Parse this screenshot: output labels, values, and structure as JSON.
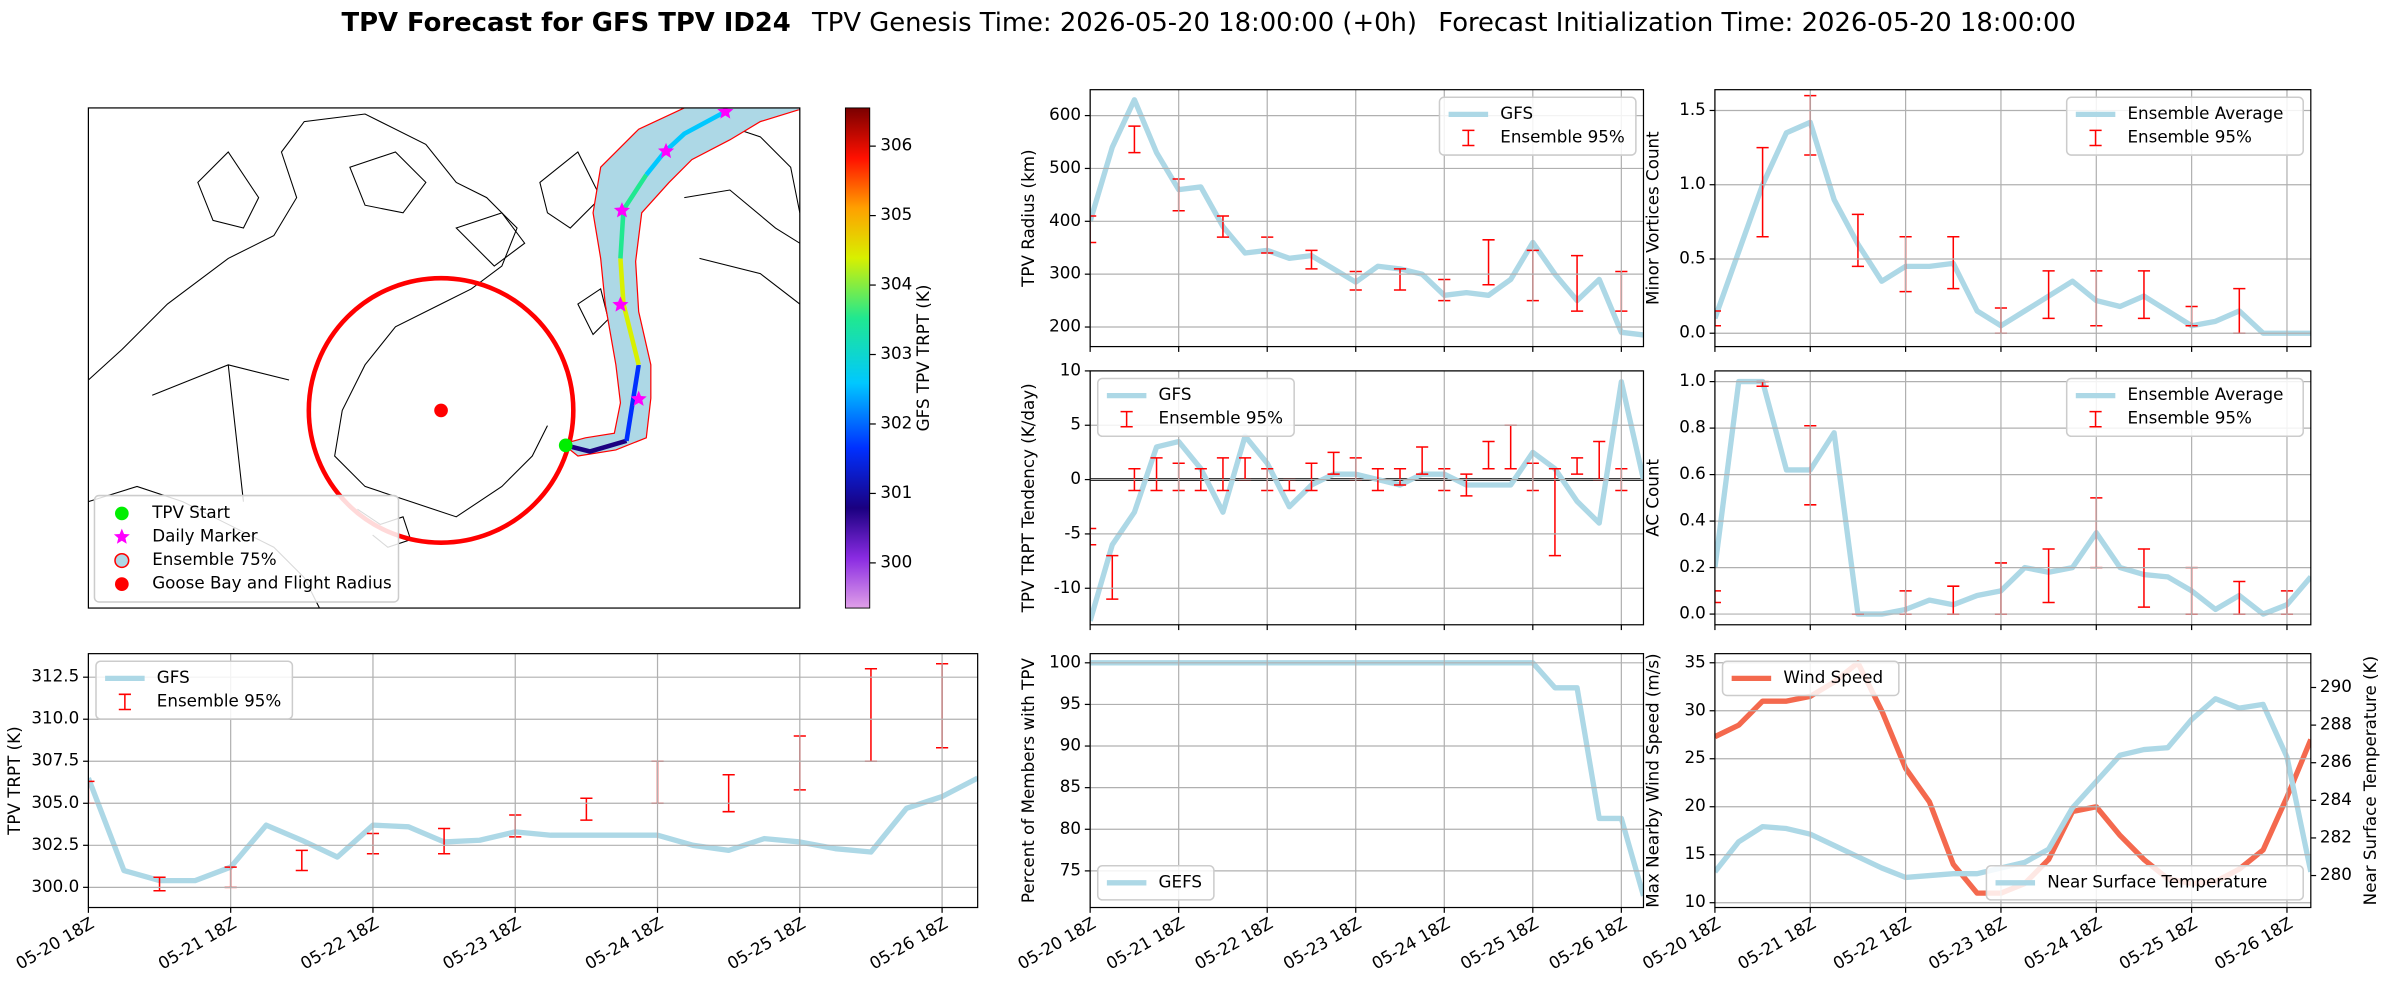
{
  "title": "TPV Forecast for GFS TPV ID24",
  "genesis": "TPV Genesis Time: 2026-05-20 18:00:00 (+0h)",
  "init": "Forecast Initialization Time: 2026-05-20 18:00:00",
  "chart_data": [
    {
      "type": "map",
      "legend_loc": "lower left",
      "legend": [
        {
          "label": "TPV Start",
          "color": "#00ee00",
          "marker": "circle"
        },
        {
          "label": "Daily Marker",
          "color": "#ff00ff",
          "marker": "star"
        },
        {
          "label": "Ensemble 75%",
          "color": "#add8e6",
          "edgecolor": "#ff0000",
          "marker": "circle"
        },
        {
          "label": "Goose Bay and Flight Radius",
          "color": "#ff0000",
          "marker": "circle"
        }
      ],
      "colorbar": {
        "label": "GFS TPV TRPT (K)",
        "lim": [
          299.35,
          306.55
        ],
        "ticks": [
          300,
          301,
          302,
          303,
          304,
          305,
          306
        ]
      }
    },
    {
      "type": "line",
      "ylabel": "TPV Radius (km)",
      "grid": true,
      "legend": "upper right",
      "xlim": [
        0,
        150
      ],
      "xticks": [
        0,
        24,
        48,
        72,
        96,
        120,
        144
      ],
      "ylim": [
        163,
        649
      ],
      "yticks": [
        200,
        300,
        400,
        500,
        600
      ],
      "x": [
        0,
        6,
        12,
        18,
        24,
        30,
        36,
        42,
        48,
        54,
        60,
        66,
        72,
        78,
        84,
        90,
        96,
        102,
        108,
        114,
        120,
        126,
        132,
        138,
        144,
        150
      ],
      "series": [
        {
          "name": "GFS",
          "color": "#add8e6",
          "values": [
            400,
            540,
            630,
            530,
            460,
            465,
            390,
            340,
            345,
            330,
            335,
            310,
            285,
            315,
            310,
            300,
            260,
            265,
            260,
            290,
            360,
            300,
            250,
            290,
            190,
            185
          ]
        }
      ],
      "errorbars": {
        "name": "Ensemble 95%",
        "color": "#ff0000",
        "x": [
          0,
          12,
          24,
          36,
          48,
          60,
          72,
          84,
          96,
          108,
          120,
          132,
          144
        ],
        "low": [
          360,
          530,
          420,
          370,
          340,
          310,
          270,
          270,
          250,
          280,
          250,
          230,
          230
        ],
        "high": [
          410,
          580,
          480,
          410,
          370,
          345,
          305,
          310,
          290,
          365,
          345,
          335,
          305
        ]
      }
    },
    {
      "type": "line",
      "ylabel": "TPV TRPT Tendency (K/day)",
      "grid": true,
      "legend": "upper left",
      "hline": 0,
      "xlim": [
        0,
        150
      ],
      "xticks": [
        0,
        24,
        48,
        72,
        96,
        120,
        144
      ],
      "ylim": [
        -13.36,
        10
      ],
      "yticks": [
        -10,
        -5,
        0,
        5,
        10
      ],
      "x": [
        0,
        6,
        12,
        18,
        24,
        30,
        36,
        42,
        48,
        54,
        60,
        66,
        72,
        78,
        84,
        90,
        96,
        102,
        108,
        114,
        120,
        126,
        132,
        138,
        144,
        150
      ],
      "series": [
        {
          "name": "GFS",
          "color": "#add8e6",
          "values": [
            -13,
            -6,
            -3,
            3,
            3.5,
            1,
            -3,
            4,
            1.5,
            -2.5,
            -0.5,
            0.5,
            0.5,
            0,
            -0.5,
            0.5,
            0.5,
            -0.5,
            -0.5,
            -0.5,
            2.5,
            1,
            -2,
            -4,
            9,
            0
          ]
        }
      ],
      "errorbars": {
        "name": "Ensemble 95%",
        "color": "#ff0000",
        "x": [
          0,
          6,
          12,
          18,
          24,
          30,
          36,
          42,
          48,
          54,
          60,
          66,
          72,
          78,
          84,
          90,
          96,
          102,
          108,
          114,
          120,
          126,
          132,
          138,
          144
        ],
        "low": [
          -6,
          -11,
          -1,
          -1,
          -1,
          -1,
          -1,
          0,
          -1,
          -1,
          -1,
          0.5,
          0,
          -1,
          -0.5,
          0.5,
          -1,
          -1.5,
          1,
          1,
          -1,
          -7,
          0.5,
          0,
          -1
        ],
        "high": [
          -4.5,
          -7,
          1,
          2,
          1.5,
          1,
          2,
          2,
          1,
          0,
          1.5,
          2.5,
          2,
          1,
          1,
          3,
          1,
          0.5,
          3.5,
          5,
          1.5,
          1,
          2,
          3.5,
          1
        ]
      }
    },
    {
      "type": "line",
      "ylabel": "Minor Vortices Count",
      "grid": true,
      "legend": "upper right",
      "xlim": [
        0,
        150
      ],
      "xticks": [
        0,
        24,
        48,
        72,
        96,
        120,
        144
      ],
      "ylim": [
        -0.09,
        1.64
      ],
      "yticks": [
        {
          "value": 0,
          "label": "0.0"
        },
        {
          "value": 0.5,
          "label": "0.5"
        },
        {
          "value": 1,
          "label": "1.0"
        },
        {
          "value": 1.5,
          "label": "1.5"
        }
      ],
      "x": [
        0,
        6,
        12,
        18,
        24,
        30,
        36,
        42,
        48,
        54,
        60,
        66,
        72,
        78,
        84,
        90,
        96,
        102,
        108,
        114,
        120,
        126,
        132,
        138,
        144,
        150
      ],
      "series": [
        {
          "name": "Ensemble Average",
          "color": "#add8e6",
          "values": [
            0.1,
            0.55,
            1.0,
            1.35,
            1.42,
            0.9,
            0.6,
            0.35,
            0.45,
            0.45,
            0.47,
            0.15,
            0.05,
            0.15,
            0.25,
            0.35,
            0.22,
            0.18,
            0.25,
            0.15,
            0.05,
            0.08,
            0.15,
            0,
            0,
            0
          ]
        }
      ],
      "errorbars": {
        "name": "Ensemble 95%",
        "color": "#ff0000",
        "x": [
          0,
          12,
          24,
          36,
          48,
          60,
          72,
          84,
          96,
          108,
          120,
          132
        ],
        "low": [
          0.05,
          0.65,
          1.2,
          0.45,
          0.28,
          0.3,
          0,
          0.1,
          0.05,
          0.1,
          0.05,
          0
        ],
        "high": [
          0.15,
          1.25,
          1.6,
          0.8,
          0.65,
          0.65,
          0.17,
          0.42,
          0.42,
          0.42,
          0.18,
          0.3
        ]
      }
    },
    {
      "type": "line",
      "ylabel": "AC Count",
      "grid": true,
      "legend": "upper right",
      "xlim": [
        0,
        150
      ],
      "xticks": [
        0,
        24,
        48,
        72,
        96,
        120,
        144
      ],
      "ylim": [
        -0.046,
        1.046
      ],
      "yticks": [
        {
          "value": 0,
          "label": "0.0"
        },
        {
          "value": 0.2,
          "label": "0.2"
        },
        {
          "value": 0.4,
          "label": "0.4"
        },
        {
          "value": 0.6,
          "label": "0.6"
        },
        {
          "value": 0.8,
          "label": "0.8"
        },
        {
          "value": 1,
          "label": "1.0"
        }
      ],
      "x": [
        0,
        6,
        12,
        18,
        24,
        30,
        36,
        42,
        48,
        54,
        60,
        66,
        72,
        78,
        84,
        90,
        96,
        102,
        108,
        114,
        120,
        126,
        132,
        138,
        144,
        150
      ],
      "series": [
        {
          "name": "Ensemble Average",
          "color": "#add8e6",
          "values": [
            0.2,
            1.0,
            1.0,
            0.62,
            0.62,
            0.78,
            0,
            0,
            0.02,
            0.06,
            0.04,
            0.08,
            0.1,
            0.2,
            0.18,
            0.2,
            0.35,
            0.2,
            0.17,
            0.16,
            0.1,
            0.02,
            0.08,
            0,
            0.04,
            0.16
          ]
        }
      ],
      "errorbars": {
        "name": "Ensemble 95%",
        "color": "#ff0000",
        "x": [
          0,
          12,
          24,
          36,
          48,
          60,
          72,
          84,
          96,
          108,
          120,
          132,
          144
        ],
        "low": [
          0.05,
          0.98,
          0.47,
          0,
          0,
          0,
          0,
          0.05,
          0.2,
          0.03,
          0,
          0,
          0
        ],
        "high": [
          0.1,
          1.0,
          0.81,
          0,
          0.1,
          0.12,
          0.22,
          0.28,
          0.5,
          0.28,
          0.2,
          0.14,
          0.1
        ]
      }
    },
    {
      "type": "line",
      "ylabel": "TPV TRPT (K)",
      "grid": true,
      "legend": "upper left",
      "xlim": [
        0,
        150
      ],
      "xticks": [
        {
          "value": 0,
          "label": "05-20 18Z"
        },
        {
          "value": 24,
          "label": "05-21 18Z"
        },
        {
          "value": 48,
          "label": "05-22 18Z"
        },
        {
          "value": 72,
          "label": "05-23 18Z"
        },
        {
          "value": 96,
          "label": "05-24 18Z"
        },
        {
          "value": 120,
          "label": "05-25 18Z"
        },
        {
          "value": 144,
          "label": "05-26 18Z"
        }
      ],
      "ylim": [
        298.8,
        313.9
      ],
      "yticks": [
        {
          "value": 300,
          "label": "300.0"
        },
        {
          "value": 302.5,
          "label": "302.5"
        },
        {
          "value": 305,
          "label": "305.0"
        },
        {
          "value": 307.5,
          "label": "307.5"
        },
        {
          "value": 310,
          "label": "310.0"
        },
        {
          "value": 312.5,
          "label": "312.5"
        }
      ],
      "x": [
        0,
        6,
        12,
        18,
        24,
        30,
        36,
        42,
        48,
        54,
        60,
        66,
        72,
        78,
        84,
        90,
        96,
        102,
        108,
        114,
        120,
        126,
        132,
        138,
        144,
        150
      ],
      "series": [
        {
          "name": "GFS",
          "color": "#add8e6",
          "values": [
            306.5,
            301,
            300.4,
            300.4,
            301.2,
            303.7,
            302.8,
            301.8,
            303.7,
            303.6,
            302.7,
            302.8,
            303.3,
            303.1,
            303.1,
            303.1,
            303.1,
            302.5,
            302.2,
            302.9,
            302.7,
            302.3,
            302.1,
            304.7,
            305.4,
            306.5
          ]
        }
      ],
      "errorbars": {
        "name": "Ensemble 95%",
        "color": "#ff0000",
        "x": [
          0,
          12,
          24,
          36,
          48,
          60,
          72,
          84,
          96,
          108,
          120,
          132,
          144
        ],
        "low": [
          305,
          299.8,
          300,
          301,
          302,
          302,
          303,
          304,
          305,
          304.5,
          305.8,
          307.5,
          308.3
        ],
        "high": [
          306.3,
          300.6,
          301.2,
          302.2,
          303.2,
          303.5,
          304.3,
          305.3,
          307.5,
          306.7,
          309,
          313,
          313.3
        ]
      }
    },
    {
      "type": "line",
      "ylabel": "Percent of Members with TPV",
      "grid": true,
      "legend": "lower left",
      "xlim": [
        0,
        150
      ],
      "xticks": [
        {
          "value": 0,
          "label": "05-20 18Z"
        },
        {
          "value": 24,
          "label": "05-21 18Z"
        },
        {
          "value": 48,
          "label": "05-22 18Z"
        },
        {
          "value": 72,
          "label": "05-23 18Z"
        },
        {
          "value": 96,
          "label": "05-24 18Z"
        },
        {
          "value": 120,
          "label": "05-25 18Z"
        },
        {
          "value": 144,
          "label": "05-26 18Z"
        }
      ],
      "ylim": [
        70.6,
        101.1
      ],
      "yticks": [
        75,
        80,
        85,
        90,
        95,
        100
      ],
      "x": [
        0,
        6,
        12,
        18,
        24,
        30,
        36,
        42,
        48,
        54,
        60,
        66,
        72,
        78,
        84,
        90,
        96,
        102,
        108,
        114,
        120,
        126,
        132,
        138,
        144,
        150
      ],
      "series": [
        {
          "name": "GEFS",
          "color": "#add8e6",
          "values": [
            100,
            100,
            100,
            100,
            100,
            100,
            100,
            100,
            100,
            100,
            100,
            100,
            100,
            100,
            100,
            100,
            100,
            100,
            100,
            100,
            100,
            97,
            97,
            81.3,
            81.3,
            72
          ]
        }
      ]
    },
    {
      "type": "line",
      "ylabel": "Max Nearby Wind Speed (m/s)",
      "ylabel_color": "#f4694e",
      "y2label": "Near Surface Temperature (K)",
      "y2label_color": "#4169e1",
      "grid": true,
      "xlim": [
        0,
        150
      ],
      "xticks": [
        {
          "value": 0,
          "label": "05-20 18Z"
        },
        {
          "value": 24,
          "label": "05-21 18Z"
        },
        {
          "value": 48,
          "label": "05-22 18Z"
        },
        {
          "value": 72,
          "label": "05-23 18Z"
        },
        {
          "value": 96,
          "label": "05-24 18Z"
        },
        {
          "value": 120,
          "label": "05-25 18Z"
        },
        {
          "value": 144,
          "label": "05-26 18Z"
        }
      ],
      "ylim": [
        9.5,
        35.95
      ],
      "yticks": [
        10,
        15,
        20,
        25,
        30,
        35
      ],
      "y2lim": [
        278.3,
        291.8
      ],
      "y2ticks": [
        280,
        282,
        284,
        286,
        288,
        290
      ],
      "x": [
        0,
        6,
        12,
        18,
        24,
        30,
        36,
        42,
        48,
        54,
        60,
        66,
        72,
        78,
        84,
        90,
        96,
        102,
        108,
        114,
        120,
        126,
        132,
        138,
        144,
        150
      ],
      "series": [
        {
          "name": "Wind Speed",
          "color": "#f4694e",
          "legend": "upper left",
          "values": [
            27.3,
            28.5,
            31,
            31,
            31.5,
            33,
            35,
            30,
            24,
            20.5,
            14,
            11,
            11,
            12,
            14.5,
            19.5,
            20,
            17,
            14.5,
            12.5,
            12,
            12.2,
            13.5,
            15.5,
            21,
            27
          ]
        },
        {
          "name": "Near Surface Temperature",
          "color": "#add8e6",
          "axis": "y2",
          "legend": "lower right",
          "values": [
            280.2,
            281.8,
            282.6,
            282.5,
            282.2,
            281.6,
            281,
            280.4,
            279.9,
            280,
            280.1,
            280.1,
            280.4,
            280.7,
            281.4,
            283.6,
            285,
            286.4,
            286.7,
            286.8,
            288.3,
            289.4,
            288.9,
            289.1,
            286.3,
            280.2
          ]
        }
      ]
    }
  ]
}
